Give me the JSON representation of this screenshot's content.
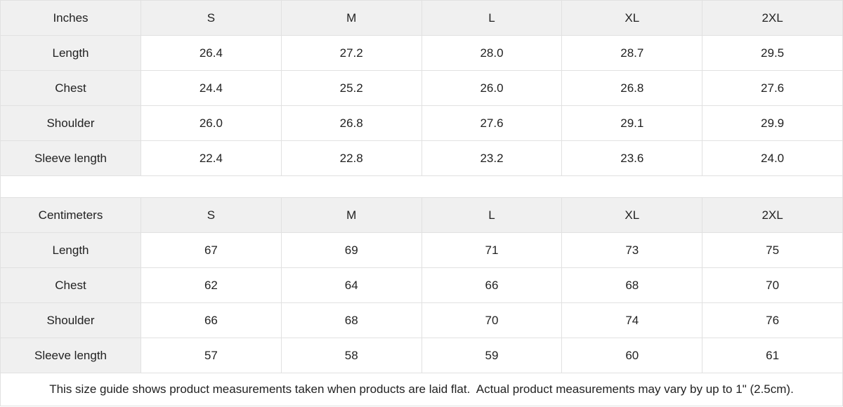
{
  "chart_data": [
    {
      "type": "table",
      "columns": [
        "Inches",
        "S",
        "M",
        "L",
        "XL",
        "2XL"
      ],
      "rows": [
        [
          "Length",
          "26.4",
          "27.2",
          "28.0",
          "28.7",
          "29.5"
        ],
        [
          "Chest",
          "24.4",
          "25.2",
          "26.0",
          "26.8",
          "27.6"
        ],
        [
          "Shoulder",
          "26.0",
          "26.8",
          "27.6",
          "29.1",
          "29.9"
        ],
        [
          "Sleeve length",
          "22.4",
          "22.8",
          "23.2",
          "23.6",
          "24.0"
        ]
      ]
    },
    {
      "type": "table",
      "columns": [
        "Centimeters",
        "S",
        "M",
        "L",
        "XL",
        "2XL"
      ],
      "rows": [
        [
          "Length",
          "67",
          "69",
          "71",
          "73",
          "75"
        ],
        [
          "Chest",
          "62",
          "64",
          "66",
          "68",
          "70"
        ],
        [
          "Shoulder",
          "66",
          "68",
          "70",
          "74",
          "76"
        ],
        [
          "Sleeve length",
          "57",
          "58",
          "59",
          "60",
          "61"
        ]
      ]
    }
  ],
  "footer": {
    "note": "This size guide shows product measurements taken when products are laid flat.  Actual product measurements may vary by up to 1\" (2.5cm)."
  },
  "colors": {
    "header_bg": "#f0f0f0",
    "cell_bg": "#ffffff",
    "border": "#e1e1e1",
    "text": "#222222"
  }
}
